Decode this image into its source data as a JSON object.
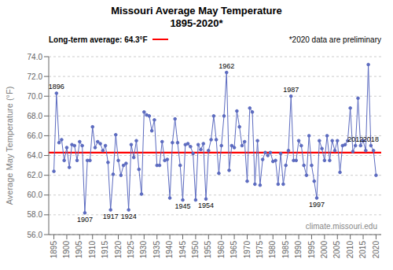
{
  "chart_data": {
    "type": "line",
    "title": "Missouri Average May Temperature",
    "subtitle": "1895-2020*",
    "ylabel": "Average May Temperature (°F)",
    "x": [
      1895,
      1896,
      1897,
      1898,
      1899,
      1900,
      1901,
      1902,
      1903,
      1904,
      1905,
      1906,
      1907,
      1908,
      1909,
      1910,
      1911,
      1912,
      1913,
      1914,
      1915,
      1916,
      1917,
      1918,
      1919,
      1920,
      1921,
      1922,
      1923,
      1924,
      1925,
      1926,
      1927,
      1928,
      1929,
      1930,
      1931,
      1932,
      1933,
      1934,
      1935,
      1936,
      1937,
      1938,
      1939,
      1940,
      1941,
      1942,
      1943,
      1944,
      1945,
      1946,
      1947,
      1948,
      1949,
      1950,
      1951,
      1952,
      1953,
      1954,
      1955,
      1956,
      1957,
      1958,
      1959,
      1960,
      1961,
      1962,
      1963,
      1964,
      1965,
      1966,
      1967,
      1968,
      1969,
      1970,
      1971,
      1972,
      1973,
      1974,
      1975,
      1976,
      1977,
      1978,
      1979,
      1980,
      1981,
      1982,
      1983,
      1984,
      1985,
      1986,
      1987,
      1988,
      1989,
      1990,
      1991,
      1992,
      1993,
      1994,
      1995,
      1996,
      1997,
      1998,
      1999,
      2000,
      2001,
      2002,
      2003,
      2004,
      2005,
      2006,
      2007,
      2008,
      2009,
      2010,
      2011,
      2012,
      2013,
      2014,
      2015,
      2016,
      2017,
      2018,
      2019,
      2020
    ],
    "values": [
      62.4,
      70.3,
      65.3,
      65.6,
      63.5,
      64.8,
      62.8,
      65.1,
      65.0,
      63.5,
      65.4,
      65.0,
      58.2,
      63.5,
      63.5,
      66.9,
      64.8,
      65.4,
      65.2,
      64.5,
      65.0,
      63.3,
      58.5,
      62.1,
      66.1,
      63.5,
      62.0,
      63.0,
      63.2,
      58.5,
      65.1,
      63.8,
      65.5,
      62.6,
      60.1,
      68.4,
      68.1,
      68.0,
      66.5,
      67.6,
      63.0,
      63.0,
      65.4,
      63.5,
      63.6,
      59.7,
      65.3,
      67.7,
      65.3,
      63.0,
      59.5,
      65.1,
      65.2,
      64.9,
      64.2,
      59.5,
      65.1,
      64.6,
      65.2,
      59.6,
      64.5,
      65.6,
      68.0,
      65.6,
      62.2,
      65.0,
      68.0,
      72.4,
      62.5,
      65.0,
      64.8,
      68.5,
      66.9,
      65.0,
      65.4,
      61.4,
      68.8,
      68.4,
      61.1,
      65.5,
      61.0,
      63.6,
      64.3,
      64.0,
      64.3,
      63.4,
      63.5,
      61.1,
      64.2,
      61.1,
      63.0,
      64.5,
      70.0,
      63.5,
      63.5,
      65.5,
      65.0,
      63.0,
      62.0,
      66.0,
      63.0,
      61.4,
      59.7,
      65.5,
      64.7,
      63.5,
      66.0,
      63.5,
      65.5,
      64.5,
      65.5,
      62.3,
      65.0,
      65.1,
      65.5,
      68.8,
      64.4,
      65.0,
      69.8,
      65.0,
      65.5,
      64.5,
      73.2,
      65.0,
      64.5,
      62.0
    ],
    "color": "#5c6bc0",
    "marker": "o",
    "xlim": [
      1893,
      2022
    ],
    "xticks": [
      1895,
      1900,
      1905,
      1910,
      1915,
      1920,
      1925,
      1930,
      1935,
      1940,
      1945,
      1950,
      1955,
      1960,
      1965,
      1970,
      1975,
      1980,
      1985,
      1990,
      1995,
      2000,
      2005,
      2010,
      2015,
      2020
    ],
    "ylim": [
      56.0,
      74.0
    ],
    "yticks": [
      {
        "value": 56,
        "label": "56.0"
      },
      {
        "value": 58,
        "label": "58.0"
      },
      {
        "value": 60,
        "label": "60.0"
      },
      {
        "value": 62,
        "label": "62.0"
      },
      {
        "value": 64,
        "label": "64.0"
      },
      {
        "value": 66,
        "label": "66.0"
      },
      {
        "value": 68,
        "label": "68.0"
      },
      {
        "value": 70,
        "label": "70.0"
      },
      {
        "value": 72,
        "label": "72.0"
      },
      {
        "value": 74,
        "label": "74.0"
      }
    ],
    "grid": true,
    "reference_lines": [
      {
        "value": 64.3,
        "label": "Long-term average: 64.3°F",
        "color": "#FF0000"
      }
    ],
    "annotations": [
      {
        "text": "*2020 data are preliminary"
      },
      {
        "text": "climate.missouri.edu"
      },
      {
        "text": "1896",
        "x": 1896,
        "y": 70.3
      },
      {
        "text": "1907",
        "x": 1907,
        "y": 58.2
      },
      {
        "text": "1917",
        "x": 1917,
        "y": 58.5
      },
      {
        "text": "1924",
        "x": 1924,
        "y": 58.5
      },
      {
        "text": "1945",
        "x": 1945,
        "y": 59.5
      },
      {
        "text": "1954",
        "x": 1954,
        "y": 59.6
      },
      {
        "text": "1962",
        "x": 1962,
        "y": 72.4
      },
      {
        "text": "1987",
        "x": 1987,
        "y": 70.0
      },
      {
        "text": "1997",
        "x": 1997,
        "y": 59.7
      },
      {
        "text": "2012",
        "x": 2012,
        "y": 65.0
      },
      {
        "text": "2018",
        "x": 2018,
        "y": 65.0
      }
    ]
  }
}
